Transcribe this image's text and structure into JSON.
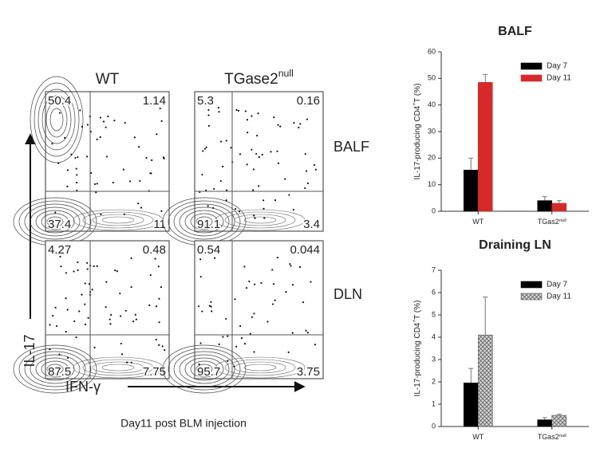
{
  "flow": {
    "columns": [
      {
        "label": "WT"
      },
      {
        "label": "TGase2",
        "sup": "null"
      }
    ],
    "rows": [
      "BALF",
      "DLN"
    ],
    "quadrants": [
      [
        [
          50.4,
          1.14,
          37.4,
          11
        ],
        [
          5.3,
          0.16,
          91.1,
          3.4
        ]
      ],
      [
        [
          4.27,
          0.48,
          87.5,
          7.75
        ],
        [
          0.54,
          0.044,
          95.7,
          3.75
        ]
      ]
    ],
    "y_axis_label": "IL-17",
    "x_axis_label": "IFN-γ",
    "caption": "Day11 post BLM injection"
  },
  "chart_data": [
    {
      "type": "bar",
      "title": "BALF",
      "ylabel": {
        "text": "IL-17-producing CD4",
        "sup": "+",
        "after": "T (%)"
      },
      "categories": [
        "WT",
        "TGas2"
      ],
      "category_sup": [
        null,
        "null"
      ],
      "series": [
        {
          "name": "Day 7",
          "color": "#000000",
          "values": [
            15.5,
            4
          ],
          "errors": [
            4.5,
            1.5
          ]
        },
        {
          "name": "Day 11",
          "color": "#d42a2a",
          "values": [
            48.5,
            3
          ],
          "errors": [
            3,
            1
          ]
        }
      ],
      "ylim": [
        0,
        60
      ],
      "yticks": [
        0,
        10,
        20,
        30,
        40,
        50,
        60
      ],
      "legend": "upper-right"
    },
    {
      "type": "bar",
      "title": "Draining LN",
      "ylabel": {
        "text": "IL-17-producing CD4",
        "sup": "+",
        "after": "T (%)"
      },
      "categories": [
        "WT",
        "TGas2"
      ],
      "category_sup": [
        null,
        "null"
      ],
      "series": [
        {
          "name": "Day 7",
          "color": "#000000",
          "values": [
            1.95,
            0.3
          ],
          "errors": [
            0.65,
            0.1
          ]
        },
        {
          "name": "Day 11",
          "color": "#9a9a9a",
          "hatch": true,
          "values": [
            4.1,
            0.5
          ],
          "errors": [
            1.7,
            0.05
          ]
        }
      ],
      "ylim": [
        0,
        7
      ],
      "yticks": [
        0,
        1,
        2,
        3,
        4,
        5,
        6,
        7
      ],
      "legend": "upper-right"
    }
  ]
}
